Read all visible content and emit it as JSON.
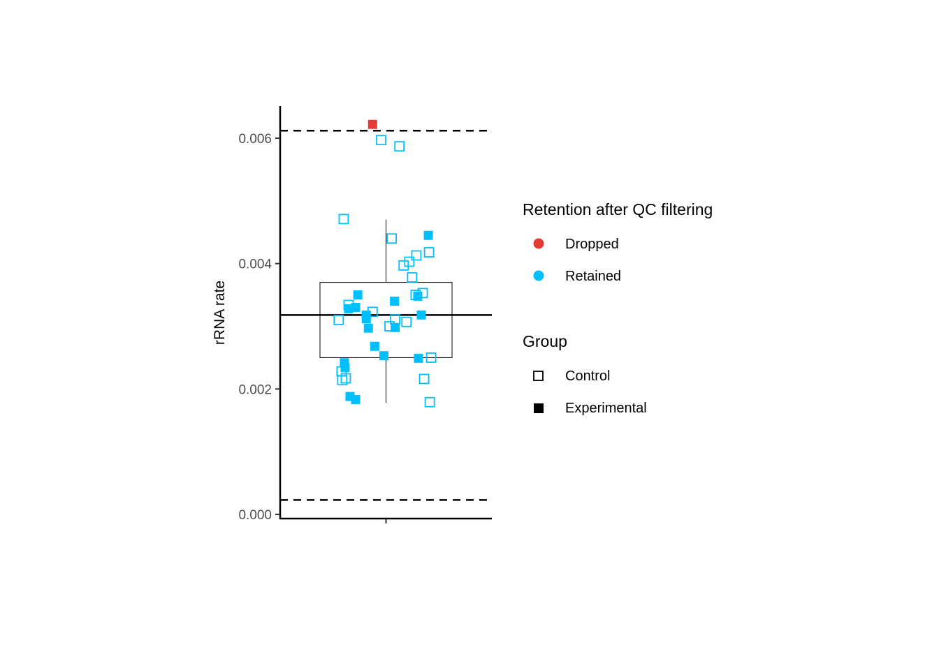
{
  "chart_data": {
    "type": "scatter",
    "title": "",
    "xlabel": "",
    "ylabel": "rRNA rate",
    "ylim": [
      0.0,
      0.0065
    ],
    "y_ticks": [
      0.0,
      0.002,
      0.004,
      0.006
    ],
    "y_tick_labels": [
      "0.000",
      "0.002",
      "0.004",
      "0.006"
    ],
    "grid": false,
    "reference_lines": {
      "median": 0.00318,
      "upper_threshold_dashed": 0.00612,
      "lower_threshold_dashed": 0.00023
    },
    "boxplot": {
      "q1": 0.0025,
      "median": 0.00318,
      "q3": 0.0037,
      "whisker_low": 0.00178,
      "whisker_high": 0.0047
    },
    "legend": {
      "placement": "right",
      "retention": {
        "title": "Retention after QC filtering",
        "entries": [
          {
            "label": "Dropped",
            "color": "#e53935"
          },
          {
            "label": "Retained",
            "color": "#00bfff"
          }
        ]
      },
      "group": {
        "title": "Group",
        "entries": [
          {
            "label": "Control",
            "shape": "open-square"
          },
          {
            "label": "Experimental",
            "shape": "filled-square"
          }
        ]
      }
    },
    "colors": {
      "Dropped": "#e53935",
      "Retained": "#00bfff",
      "axis": "#000000"
    },
    "points": [
      {
        "jitter": -0.19,
        "y": 0.00622,
        "group": "Experimental",
        "retention": "Dropped"
      },
      {
        "jitter": -0.07,
        "y": 0.00597,
        "group": "Control",
        "retention": "Retained"
      },
      {
        "jitter": 0.19,
        "y": 0.00587,
        "group": "Control",
        "retention": "Retained"
      },
      {
        "jitter": -0.6,
        "y": 0.00471,
        "group": "Control",
        "retention": "Retained"
      },
      {
        "jitter": 0.08,
        "y": 0.0044,
        "group": "Control",
        "retention": "Retained"
      },
      {
        "jitter": 0.6,
        "y": 0.00445,
        "group": "Experimental",
        "retention": "Retained"
      },
      {
        "jitter": 0.61,
        "y": 0.00418,
        "group": "Control",
        "retention": "Retained"
      },
      {
        "jitter": 0.43,
        "y": 0.00413,
        "group": "Control",
        "retention": "Retained"
      },
      {
        "jitter": 0.33,
        "y": 0.00403,
        "group": "Control",
        "retention": "Retained"
      },
      {
        "jitter": 0.25,
        "y": 0.00397,
        "group": "Control",
        "retention": "Retained"
      },
      {
        "jitter": 0.37,
        "y": 0.00378,
        "group": "Control",
        "retention": "Retained"
      },
      {
        "jitter": 0.52,
        "y": 0.00353,
        "group": "Control",
        "retention": "Retained"
      },
      {
        "jitter": 0.42,
        "y": 0.0035,
        "group": "Control",
        "retention": "Retained"
      },
      {
        "jitter": 0.45,
        "y": 0.00348,
        "group": "Experimental",
        "retention": "Retained"
      },
      {
        "jitter": -0.4,
        "y": 0.0035,
        "group": "Experimental",
        "retention": "Retained"
      },
      {
        "jitter": 0.12,
        "y": 0.0034,
        "group": "Experimental",
        "retention": "Retained"
      },
      {
        "jitter": -0.53,
        "y": 0.00334,
        "group": "Control",
        "retention": "Retained"
      },
      {
        "jitter": -0.53,
        "y": 0.00328,
        "group": "Experimental",
        "retention": "Retained"
      },
      {
        "jitter": -0.43,
        "y": 0.0033,
        "group": "Experimental",
        "retention": "Retained"
      },
      {
        "jitter": -0.19,
        "y": 0.00323,
        "group": "Control",
        "retention": "Retained"
      },
      {
        "jitter": -0.28,
        "y": 0.00318,
        "group": "Experimental",
        "retention": "Retained"
      },
      {
        "jitter": 0.5,
        "y": 0.00318,
        "group": "Experimental",
        "retention": "Retained"
      },
      {
        "jitter": -0.28,
        "y": 0.00312,
        "group": "Experimental",
        "retention": "Retained"
      },
      {
        "jitter": 0.13,
        "y": 0.00311,
        "group": "Control",
        "retention": "Retained"
      },
      {
        "jitter": -0.67,
        "y": 0.0031,
        "group": "Control",
        "retention": "Retained"
      },
      {
        "jitter": 0.29,
        "y": 0.00307,
        "group": "Control",
        "retention": "Retained"
      },
      {
        "jitter": 0.05,
        "y": 0.003,
        "group": "Control",
        "retention": "Retained"
      },
      {
        "jitter": 0.13,
        "y": 0.00298,
        "group": "Experimental",
        "retention": "Retained"
      },
      {
        "jitter": -0.25,
        "y": 0.00297,
        "group": "Experimental",
        "retention": "Retained"
      },
      {
        "jitter": -0.16,
        "y": 0.00268,
        "group": "Experimental",
        "retention": "Retained"
      },
      {
        "jitter": -0.03,
        "y": 0.00253,
        "group": "Experimental",
        "retention": "Retained"
      },
      {
        "jitter": 0.46,
        "y": 0.00249,
        "group": "Experimental",
        "retention": "Retained"
      },
      {
        "jitter": 0.64,
        "y": 0.0025,
        "group": "Control",
        "retention": "Retained"
      },
      {
        "jitter": -0.59,
        "y": 0.00242,
        "group": "Experimental",
        "retention": "Retained"
      },
      {
        "jitter": -0.58,
        "y": 0.00234,
        "group": "Experimental",
        "retention": "Retained"
      },
      {
        "jitter": -0.63,
        "y": 0.00228,
        "group": "Control",
        "retention": "Retained"
      },
      {
        "jitter": -0.57,
        "y": 0.00217,
        "group": "Control",
        "retention": "Retained"
      },
      {
        "jitter": -0.62,
        "y": 0.00214,
        "group": "Control",
        "retention": "Retained"
      },
      {
        "jitter": 0.54,
        "y": 0.00216,
        "group": "Control",
        "retention": "Retained"
      },
      {
        "jitter": -0.51,
        "y": 0.00188,
        "group": "Experimental",
        "retention": "Retained"
      },
      {
        "jitter": -0.43,
        "y": 0.00183,
        "group": "Experimental",
        "retention": "Retained"
      },
      {
        "jitter": 0.62,
        "y": 0.00179,
        "group": "Control",
        "retention": "Retained"
      }
    ]
  }
}
